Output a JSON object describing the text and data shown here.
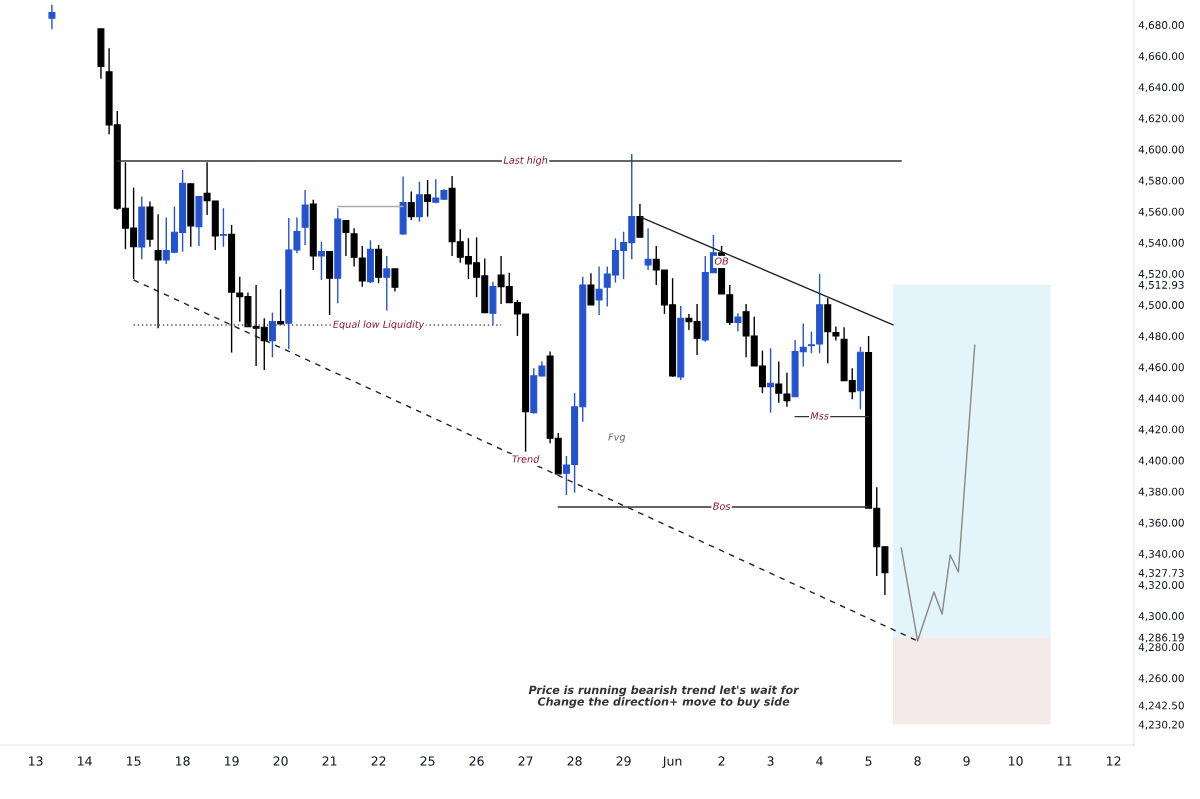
{
  "chart_data": {
    "type": "candlestick",
    "categories": [
      null,
      null,
      null,
      null,
      "13",
      null,
      null,
      null,
      null,
      null,
      "14",
      null,
      null,
      null,
      null,
      null,
      "15",
      null,
      null,
      null,
      null,
      null,
      "18",
      null,
      null,
      null,
      null,
      null,
      "19",
      null,
      null,
      null,
      null,
      null,
      "20",
      null,
      null,
      null,
      null,
      null,
      "21",
      null,
      null,
      null,
      null,
      null,
      "22",
      null,
      null,
      null,
      null,
      null,
      "25",
      null,
      null,
      null,
      null,
      null,
      "26",
      null,
      null,
      null,
      null,
      null,
      "27",
      null,
      null,
      null,
      null,
      null,
      "28",
      null,
      null,
      null,
      null,
      null,
      "29",
      null,
      null,
      null,
      null,
      null,
      "Jun",
      null,
      null,
      null,
      null,
      null,
      "2",
      null,
      null,
      null,
      null,
      null,
      "3",
      null,
      null,
      null,
      null,
      null,
      "4",
      null,
      null,
      null,
      null,
      null,
      "5",
      null,
      null,
      null,
      null,
      null,
      "8",
      null,
      null,
      null,
      null,
      null,
      "9",
      null,
      null,
      null,
      null,
      null,
      "10",
      null,
      null,
      null,
      null,
      null,
      "11",
      null,
      null,
      null,
      null,
      null,
      "12",
      null,
      null
    ],
    "ohlc": [
      null,
      null,
      null,
      null,
      null,
      null,
      [
        4684.3,
        4692.9,
        4677.2,
        4687.9
      ],
      null,
      null,
      null,
      null,
      null,
      [
        4677.4,
        4677.4,
        4645.3,
        4653.2
      ],
      [
        4649.8,
        4665,
        4609.7,
        4615.7
      ],
      [
        4615.7,
        4624.7,
        4561,
        4562.1
      ],
      [
        4562.1,
        4591.7,
        4535.8,
        4549.3
      ],
      [
        4549.3,
        4575.4,
        4516.5,
        4537.4
      ],
      [
        4537.2,
        4569.6,
        4529.3,
        4562.8
      ],
      [
        4562.8,
        4566.4,
        4537.4,
        4542.2
      ],
      [
        4534.9,
        4558.3,
        4485,
        4528.9
      ],
      [
        4528.9,
        4556.1,
        4526.3,
        4534.9
      ],
      [
        4533.8,
        4563.2,
        4533.2,
        4546.7
      ],
      [
        4546.6,
        4586.8,
        4534.2,
        4578.2
      ],
      [
        4577.8,
        4578,
        4537.4,
        4550.8
      ],
      [
        4550.3,
        4570,
        4537.9,
        4569.6
      ],
      [
        4571.7,
        4591.7,
        4557.8,
        4567
      ],
      [
        4566.8,
        4566.8,
        4535.3,
        4544.3
      ],
      [
        4544.8,
        4562.1,
        4537.4,
        4545.2
      ],
      [
        4545.4,
        4551.4,
        4469.3,
        4508.1
      ],
      [
        4507.5,
        4518.1,
        4489.2,
        4505.3
      ],
      [
        4505.3,
        4507.9,
        4486,
        4486
      ],
      [
        4486,
        4512.8,
        4460.7,
        4485
      ],
      [
        4485.6,
        4491.4,
        4458.1,
        4477
      ],
      [
        4477,
        4495,
        4466.3,
        4489.2
      ],
      [
        4489.2,
        4510,
        4487,
        4487.7
      ],
      [
        4488.2,
        4555.9,
        4471.4,
        4535.3
      ],
      [
        4535.3,
        4556.1,
        4533.2,
        4547.1
      ],
      [
        4549.9,
        4573.9,
        4538.5,
        4564.2
      ],
      [
        4564.8,
        4567.5,
        4522.4,
        4531.4
      ],
      [
        4531.4,
        4540.6,
        4516,
        4534.2
      ],
      [
        4534.2,
        4534.2,
        4493.5,
        4517.1
      ],
      [
        4517.1,
        4562.1,
        4501,
        4555.1
      ],
      [
        4554.2,
        4554.2,
        4531.4,
        4546.6
      ],
      [
        4545.6,
        4549.3,
        4524.6,
        4530.6
      ],
      [
        4530,
        4537.9,
        4511.7,
        4515.4
      ],
      [
        4514.9,
        4541.5,
        4514,
        4535.7
      ],
      [
        4535.7,
        4538.5,
        4513.9,
        4517.7
      ],
      [
        4517.7,
        4531.4,
        4496.3,
        4523.1
      ],
      [
        4523.1,
        4523.1,
        4508.5,
        4511.3
      ],
      [
        4545.6,
        4582.5,
        4545,
        4565.7
      ],
      [
        4565.7,
        4572.8,
        4554.6,
        4556.7
      ],
      [
        4556.7,
        4579.2,
        4553.5,
        4570.7
      ],
      [
        4570.7,
        4580.3,
        4556.7,
        4566.4
      ],
      [
        4566,
        4580.8,
        4565.3,
        4568.6
      ],
      [
        4567.9,
        4574.3,
        4567.5,
        4573.4
      ],
      [
        4575,
        4582.8,
        4531.4,
        4540.6
      ],
      [
        4540.6,
        4548.6,
        4527.1,
        4530.6
      ],
      [
        4531,
        4542.8,
        4516.5,
        4526.3
      ],
      [
        4527.1,
        4543.4,
        4504.9,
        4517.7
      ],
      [
        4518.6,
        4529.8,
        4495,
        4495
      ],
      [
        4494.6,
        4514.9,
        4487.1,
        4511.7
      ],
      [
        4519.2,
        4531.4,
        4500.6,
        4511.7
      ],
      [
        4511.7,
        4520.7,
        4501.4,
        4501.4
      ],
      [
        4501.4,
        4503.2,
        4480,
        4494.1
      ],
      [
        4494.1,
        4494.1,
        4405.6,
        4431.3
      ],
      [
        4430.7,
        4459.2,
        4430.1,
        4454.3
      ],
      [
        4454.3,
        4463.5,
        4454,
        4460.7
      ],
      [
        4467.1,
        4470,
        4411,
        4414.2
      ],
      [
        4414.2,
        4417.6,
        4391.3,
        4391.3
      ],
      [
        4391.7,
        4402.8,
        4377.8,
        4397
      ],
      [
        4397.4,
        4443.2,
        4379.2,
        4434.5
      ],
      [
        4434.5,
        4518.1,
        4424.9,
        4512.8
      ],
      [
        4512.8,
        4520.3,
        4500,
        4500
      ],
      [
        4503.2,
        4524.6,
        4493.5,
        4510
      ],
      [
        4511.3,
        4524.6,
        4498.9,
        4519.8
      ],
      [
        4519.2,
        4542.8,
        4514.3,
        4534.9
      ],
      [
        4534.9,
        4547,
        4516.5,
        4540
      ],
      [
        4540,
        4597,
        4529.3,
        4556.7
      ],
      [
        4556.7,
        4564.8,
        4543.5,
        4543.5
      ],
      [
        4525.7,
        4549.3,
        4522.4,
        4529.3
      ],
      [
        4529.3,
        4537.9,
        4512.8,
        4522.4
      ],
      [
        4522.4,
        4522.4,
        4494.1,
        4500
      ],
      [
        4500,
        4517.1,
        4453.7,
        4454.3
      ],
      [
        4453.7,
        4499.3,
        4451.7,
        4491.4
      ],
      [
        4491.4,
        4494.1,
        4483.9,
        4489.2
      ],
      [
        4489.2,
        4500.6,
        4467.8,
        4478.5
      ],
      [
        4477.4,
        4531.4,
        4476.3,
        4520.7
      ],
      [
        4520.7,
        4545,
        4520.7,
        4533.5
      ],
      [
        4533.5,
        4537.9,
        4507,
        4507
      ],
      [
        4506.4,
        4512.8,
        4487.1,
        4488.6
      ],
      [
        4488.6,
        4494.6,
        4482.8,
        4492.1
      ],
      [
        4495.6,
        4500.6,
        4466.3,
        4480
      ],
      [
        4480,
        4492.4,
        4460.7,
        4460.7
      ],
      [
        4460.7,
        4470.6,
        4443.2,
        4447.4
      ],
      [
        4447.4,
        4472.1,
        4430.7,
        4449.6
      ],
      [
        4449,
        4463.5,
        4437.1,
        4443.2
      ],
      [
        4442.7,
        4456.4,
        4434.5,
        4438.4
      ],
      [
        4440.9,
        4477.4,
        4440.9,
        4469.9
      ],
      [
        4469.9,
        4488,
        4460.3,
        4472.7
      ],
      [
        4473.8,
        4482.8,
        4468.9,
        4474.3
      ],
      [
        4474.9,
        4519.9,
        4468.9,
        4500
      ],
      [
        4500,
        4504.2,
        4462.4,
        4482.8
      ],
      [
        4482.1,
        4486,
        4477,
        4480
      ],
      [
        4477.9,
        4485.6,
        4451.3,
        4451.3
      ],
      [
        4451.3,
        4459.2,
        4439.3,
        4444.2
      ],
      [
        4444.8,
        4473.1,
        4432.9,
        4469.5
      ],
      [
        4469.3,
        4480,
        4369.2,
        4369.2
      ],
      [
        4369.2,
        4382.7,
        4325.7,
        4344.5
      ],
      [
        4344.5,
        4344.5,
        4313.4,
        4327.73
      ],
      null,
      null,
      null,
      null,
      null,
      null,
      null,
      null,
      null,
      null,
      null,
      null,
      null,
      null,
      null,
      null,
      null,
      null,
      null,
      null,
      null,
      null,
      null,
      null,
      null,
      null,
      null,
      null,
      null,
      null
    ],
    "colors": [
      null,
      null,
      null,
      null,
      null,
      null,
      "#2453cf",
      null,
      null,
      null,
      null,
      null,
      "#000000",
      "#000000",
      "#000000",
      "#000000",
      "#000000",
      "#2453cf",
      "#000000",
      "#000000",
      "#2453cf",
      "#2453cf",
      "#2453cf",
      "#000000",
      "#2453cf",
      "#000000",
      "#000000",
      "#2453cf",
      "#000000",
      "#000000",
      "#000000",
      "#000000",
      "#000000",
      "#2453cf",
      "#000000",
      "#2453cf",
      "#2453cf",
      "#2453cf",
      "#000000",
      "#2453cf",
      "#000000",
      "#2453cf",
      "#000000",
      "#000000",
      "#000000",
      "#2453cf",
      "#000000",
      "#2453cf",
      "#000000",
      "#2453cf",
      "#000000",
      "#2453cf",
      "#000000",
      "#2453cf",
      "#2453cf",
      "#000000",
      "#000000",
      "#000000",
      "#000000",
      "#000000",
      "#2453cf",
      "#000000",
      "#000000",
      "#000000",
      "#000000",
      "#2453cf",
      "#2453cf",
      "#000000",
      "#000000",
      "#2453cf",
      "#2453cf",
      "#2453cf",
      "#000000",
      "#2453cf",
      "#2453cf",
      "#2453cf",
      "#2453cf",
      "#2453cf",
      "#000000",
      "#2453cf",
      "#000000",
      "#000000",
      "#000000",
      "#2453cf",
      "#000000",
      "#000000",
      "#2453cf",
      "#2453cf",
      "#000000",
      "#000000",
      "#2453cf",
      "#000000",
      "#000000",
      "#000000",
      "#2453cf",
      "#000000",
      "#000000",
      "#2453cf",
      "#2453cf",
      "#2453cf",
      "#2453cf",
      "#000000",
      "#000000",
      "#000000",
      "#000000",
      "#2453cf",
      "#000000",
      "#000000",
      "#000000",
      null,
      null,
      null,
      null,
      null,
      null,
      null,
      null,
      null,
      null,
      null,
      null,
      null,
      null,
      null,
      null,
      null,
      null,
      null,
      null,
      null,
      null,
      null,
      null,
      null,
      null,
      null,
      null,
      null,
      null
    ],
    "series": [
      {
        "type": "line",
        "color": "#222222",
        "line_style": "dashed",
        "values": [
          null,
          null,
          null,
          null,
          null,
          null,
          null,
          null,
          null,
          null,
          null,
          null,
          null,
          null,
          null,
          null,
          4516.0,
          null,
          null,
          null,
          null,
          null,
          null,
          null,
          null,
          null,
          null,
          null,
          null,
          null,
          null,
          null,
          null,
          null,
          null,
          null,
          null,
          null,
          null,
          null,
          null,
          null,
          null,
          null,
          null,
          null,
          null,
          null,
          null,
          null,
          null,
          null,
          null,
          null,
          null,
          null,
          null,
          null,
          null,
          null,
          null,
          null,
          null,
          null,
          null,
          null,
          null,
          null,
          null,
          null,
          null,
          null,
          null,
          null,
          null,
          null,
          null,
          null,
          null,
          null,
          null,
          null,
          null,
          null,
          null,
          null,
          null,
          null,
          null,
          null,
          null,
          null,
          null,
          null,
          null,
          null,
          null,
          null,
          null,
          null,
          null,
          null,
          null,
          null,
          null,
          null,
          null,
          null,
          null,
          null,
          null,
          null,
          4283.9,
          null,
          null,
          null,
          null,
          null,
          null,
          null,
          null,
          null,
          null,
          null,
          null,
          null,
          null,
          null,
          null,
          null,
          null,
          null,
          null,
          null,
          null,
          null,
          null,
          null,
          null
        ]
      },
      {
        "type": "line",
        "color": "#222222",
        "line_style": "solid",
        "values": [
          null,
          null,
          null,
          null,
          null,
          null,
          null,
          null,
          null,
          null,
          null,
          null,
          null,
          null,
          null,
          null,
          null,
          null,
          null,
          null,
          null,
          null,
          null,
          null,
          null,
          null,
          null,
          null,
          null,
          null,
          null,
          null,
          null,
          null,
          null,
          null,
          null,
          null,
          null,
          null,
          null,
          null,
          null,
          null,
          null,
          null,
          null,
          null,
          null,
          null,
          null,
          null,
          null,
          null,
          null,
          null,
          null,
          null,
          null,
          null,
          null,
          null,
          null,
          null,
          null,
          null,
          null,
          null,
          null,
          null,
          null,
          null,
          null,
          null,
          null,
          null,
          null,
          null,
          4556.5,
          null,
          null,
          null,
          null,
          null,
          null,
          null,
          null,
          null,
          null,
          null,
          null,
          null,
          null,
          null,
          null,
          null,
          null,
          null,
          null,
          null,
          null,
          null,
          null,
          null,
          null,
          null,
          null,
          null,
          null,
          4487.1,
          null,
          null,
          null,
          null,
          null,
          null,
          null,
          null,
          null,
          null,
          null,
          null,
          null,
          null,
          null,
          null,
          null,
          null,
          null,
          null,
          null,
          null,
          null,
          null,
          null,
          null,
          null,
          null,
          null
        ]
      },
      {
        "type": "line",
        "color": "#333333",
        "line_style": "solid",
        "values": [
          null,
          null,
          null,
          null,
          null,
          null,
          null,
          null,
          null,
          null,
          null,
          null,
          null,
          null,
          4592.5,
          null,
          null,
          null,
          null,
          null,
          null,
          null,
          null,
          null,
          null,
          null,
          null,
          null,
          null,
          null,
          null,
          null,
          null,
          null,
          null,
          null,
          null,
          null,
          null,
          null,
          null,
          null,
          null,
          null,
          null,
          null,
          null,
          null,
          null,
          null,
          null,
          null,
          null,
          null,
          null,
          null,
          null,
          null,
          null,
          null,
          null,
          null,
          null,
          null,
          null,
          null,
          null,
          null,
          null,
          null,
          null,
          null,
          null,
          null,
          null,
          null,
          null,
          null,
          null,
          null,
          null,
          null,
          null,
          null,
          null,
          null,
          null,
          null,
          null,
          null,
          null,
          null,
          null,
          null,
          null,
          null,
          null,
          null,
          null,
          null,
          null,
          null,
          null,
          null,
          null,
          null,
          null,
          null,
          null,
          null,
          4592.5,
          null,
          null,
          null,
          null,
          null,
          null,
          null,
          null,
          null,
          null,
          null,
          null,
          null,
          null,
          null,
          null,
          null,
          null,
          null,
          null,
          null,
          null,
          null,
          null,
          null,
          null,
          null,
          null
        ]
      },
      {
        "type": "line",
        "color": "#555555",
        "line_style": "dotted",
        "values": [
          null,
          null,
          null,
          null,
          null,
          null,
          null,
          null,
          null,
          null,
          null,
          null,
          null,
          null,
          null,
          null,
          4487,
          null,
          null,
          null,
          null,
          null,
          null,
          null,
          null,
          null,
          null,
          null,
          null,
          null,
          null,
          null,
          null,
          null,
          null,
          null,
          null,
          null,
          null,
          null,
          null,
          null,
          null,
          null,
          null,
          null,
          null,
          null,
          null,
          null,
          null,
          null,
          null,
          null,
          null,
          null,
          null,
          null,
          null,
          null,
          null,
          4487,
          null,
          null,
          null,
          null,
          null,
          null,
          null,
          null,
          null,
          null,
          null,
          null,
          null,
          null,
          null,
          null,
          null,
          null,
          null,
          null,
          null,
          null,
          null,
          null,
          null,
          null,
          null,
          null,
          null,
          null,
          null,
          null,
          null,
          null,
          null,
          null,
          null,
          null,
          null,
          null,
          null,
          null,
          null,
          null,
          null,
          null,
          null,
          null,
          null,
          null,
          null,
          null,
          null,
          null,
          null,
          null,
          null,
          null,
          null,
          null,
          null,
          null,
          null,
          null,
          null,
          null,
          null,
          null,
          null,
          null,
          null,
          null,
          null,
          null,
          null,
          null,
          null
        ]
      },
      {
        "type": "line",
        "color": "#333333",
        "line_style": "solid",
        "values": [
          null,
          null,
          null,
          null,
          null,
          null,
          null,
          null,
          null,
          null,
          null,
          null,
          null,
          null,
          null,
          null,
          null,
          null,
          null,
          null,
          null,
          null,
          null,
          null,
          null,
          null,
          null,
          null,
          null,
          null,
          null,
          null,
          null,
          null,
          null,
          null,
          null,
          null,
          null,
          null,
          null,
          null,
          null,
          null,
          null,
          null,
          null,
          null,
          null,
          null,
          null,
          null,
          null,
          null,
          null,
          null,
          null,
          null,
          null,
          null,
          null,
          null,
          null,
          null,
          null,
          null,
          null,
          null,
          4370,
          null,
          null,
          null,
          null,
          null,
          null,
          null,
          null,
          null,
          null,
          null,
          null,
          null,
          null,
          null,
          null,
          null,
          null,
          null,
          null,
          null,
          null,
          null,
          null,
          null,
          null,
          null,
          null,
          null,
          null,
          null,
          null,
          null,
          null,
          null,
          null,
          null,
          4370,
          null,
          null,
          null,
          null,
          null,
          null,
          null,
          null,
          null,
          null,
          null,
          null,
          null,
          null,
          null,
          null,
          null,
          null,
          null,
          null,
          null,
          null,
          null,
          null,
          null,
          null,
          null,
          null,
          null,
          null,
          null,
          null
        ]
      },
      {
        "type": "line",
        "color": "#333333",
        "line_style": "solid",
        "values": [
          null,
          null,
          null,
          null,
          null,
          null,
          null,
          null,
          null,
          null,
          null,
          null,
          null,
          null,
          null,
          null,
          null,
          null,
          null,
          null,
          null,
          null,
          null,
          null,
          null,
          null,
          null,
          null,
          null,
          null,
          null,
          null,
          null,
          null,
          null,
          null,
          null,
          null,
          null,
          null,
          null,
          null,
          null,
          null,
          null,
          null,
          null,
          null,
          null,
          null,
          null,
          null,
          null,
          null,
          null,
          null,
          null,
          null,
          null,
          null,
          null,
          null,
          null,
          null,
          null,
          null,
          null,
          null,
          null,
          null,
          null,
          null,
          null,
          null,
          null,
          null,
          null,
          null,
          null,
          null,
          null,
          null,
          null,
          null,
          null,
          null,
          null,
          null,
          null,
          null,
          null,
          null,
          null,
          null,
          null,
          null,
          null,
          4428.1,
          null,
          null,
          null,
          null,
          null,
          null,
          null,
          null,
          4428.1,
          null,
          null,
          null,
          null,
          null,
          null,
          null,
          null,
          null,
          null,
          null,
          null,
          null,
          null,
          null,
          null,
          null,
          null,
          null,
          null,
          null,
          null,
          null,
          null,
          null,
          null,
          null,
          null,
          null,
          null,
          null,
          null
        ]
      },
      {
        "type": "line",
        "color": "#aaaaaa",
        "line_style": "solid",
        "values": [
          null,
          null,
          null,
          null,
          null,
          null,
          null,
          null,
          null,
          null,
          null,
          null,
          null,
          null,
          null,
          null,
          null,
          null,
          null,
          null,
          null,
          null,
          null,
          null,
          null,
          null,
          null,
          null,
          null,
          null,
          null,
          null,
          null,
          null,
          null,
          null,
          null,
          null,
          null,
          null,
          null,
          4563.2,
          null,
          null,
          null,
          null,
          null,
          null,
          null,
          4563.2,
          null,
          null,
          null,
          null,
          null,
          null,
          null,
          null,
          null,
          null,
          null,
          null,
          null,
          null,
          null,
          null,
          null,
          null,
          null,
          null,
          null,
          null,
          null,
          null,
          null,
          null,
          null,
          null,
          null,
          null,
          null,
          null,
          null,
          null,
          null,
          null,
          null,
          null,
          null,
          null,
          null,
          null,
          null,
          null,
          null,
          null,
          null,
          null,
          null,
          null,
          null,
          null,
          null,
          null,
          null,
          null,
          null,
          null,
          null,
          null,
          null,
          null,
          null,
          null,
          null,
          null,
          null,
          null,
          null,
          null,
          null,
          null,
          null,
          null,
          null,
          null,
          null,
          null,
          null,
          null,
          null,
          null,
          null,
          null,
          null,
          null,
          null,
          null,
          null
        ]
      },
      {
        "type": "line",
        "color": "#888888",
        "line_style": "solid",
        "values": [
          null,
          null,
          null,
          null,
          null,
          null,
          null,
          null,
          null,
          null,
          null,
          null,
          null,
          null,
          null,
          null,
          null,
          null,
          null,
          null,
          null,
          null,
          null,
          null,
          null,
          null,
          null,
          null,
          null,
          null,
          null,
          null,
          null,
          null,
          null,
          null,
          null,
          null,
          null,
          null,
          null,
          null,
          null,
          null,
          null,
          null,
          null,
          null,
          null,
          null,
          null,
          null,
          null,
          null,
          null,
          null,
          null,
          null,
          null,
          null,
          null,
          null,
          null,
          null,
          null,
          null,
          null,
          null,
          null,
          null,
          null,
          null,
          null,
          null,
          null,
          null,
          null,
          null,
          null,
          null,
          null,
          null,
          null,
          null,
          null,
          null,
          null,
          null,
          null,
          null,
          null,
          null,
          null,
          null,
          null,
          null,
          null,
          null,
          null,
          null,
          null,
          null,
          null,
          null,
          null,
          null,
          null,
          null,
          null,
          null,
          4343.7,
          null,
          4283.9,
          null,
          4315.4,
          4301.2,
          4339.2,
          4328.2,
          null,
          4474.2,
          null,
          null,
          null,
          null,
          null,
          null,
          null,
          null,
          null,
          null,
          null,
          null,
          null,
          null,
          null,
          null,
          null,
          null,
          null
        ]
      }
    ],
    "bands": [
      {
        "axis": "y",
        "from": 4286.19,
        "to": 4512.93,
        "color": "#e3f5fb"
      },
      {
        "axis": "y",
        "from": 4230.2,
        "to": 4286.19,
        "color": "#f5e9ea"
      }
    ],
    "annotations": [
      {
        "text": "Last high",
        "x": "27",
        "y": 4592.5
      },
      {
        "text": "Equal low Liquidity",
        "x": "22",
        "y": 4487
      },
      {
        "text": "Trend",
        "x": "27",
        "y": 4400.3
      },
      "Fvg",
      {
        "text": "OB",
        "x": "2",
        "y": 4527.6
      },
      {
        "text": "Mss",
        "x": "4",
        "y": 4428.1
      },
      {
        "text": "Bos",
        "x": "2",
        "y": 4370
      },
      "Price is running bearish trend let's wait for\nChange the direction+ move to buy side"
    ],
    "ylim": [
      4217,
      4696
    ],
    "yticks": [
      {
        "value": 4230.2,
        "label": "4,230.20"
      },
      {
        "value": 4242.5,
        "label": "4,242.50"
      },
      {
        "value": 4260,
        "label": "4,260.00"
      },
      {
        "value": 4280,
        "label": "4,280.00"
      },
      {
        "value": 4286.19,
        "label": "4,286.19"
      },
      {
        "value": 4300,
        "label": "4,300.00"
      },
      {
        "value": 4320,
        "label": "4,320.00"
      },
      {
        "value": 4327.73,
        "label": "4,327.73"
      },
      {
        "value": 4340,
        "label": "4,340.00"
      },
      {
        "value": 4360,
        "label": "4,360.00"
      },
      {
        "value": 4380,
        "label": "4,380.00"
      },
      {
        "value": 4400,
        "label": "4,400.00"
      },
      {
        "value": 4420,
        "label": "4,420.00"
      },
      {
        "value": 4440,
        "label": "4,440.00"
      },
      {
        "value": 4460,
        "label": "4,460.00"
      },
      {
        "value": 4480,
        "label": "4,480.00"
      },
      {
        "value": 4500,
        "label": "4,500.00"
      },
      {
        "value": 4512.93,
        "label": "4,512.93"
      },
      {
        "value": 4520,
        "label": "4,520.00"
      },
      {
        "value": 4540,
        "label": "4,540.00"
      },
      {
        "value": 4560,
        "label": "4,560.00"
      },
      {
        "value": 4580,
        "label": "4,580.00"
      },
      {
        "value": 4600,
        "label": "4,600.00"
      },
      {
        "value": 4620,
        "label": "4,620.00"
      },
      {
        "value": 4640,
        "label": "4,640.00"
      },
      {
        "value": 4660,
        "label": "4,660.00"
      },
      {
        "value": 4680,
        "label": "4,680.00"
      }
    ],
    "grid": false
  }
}
